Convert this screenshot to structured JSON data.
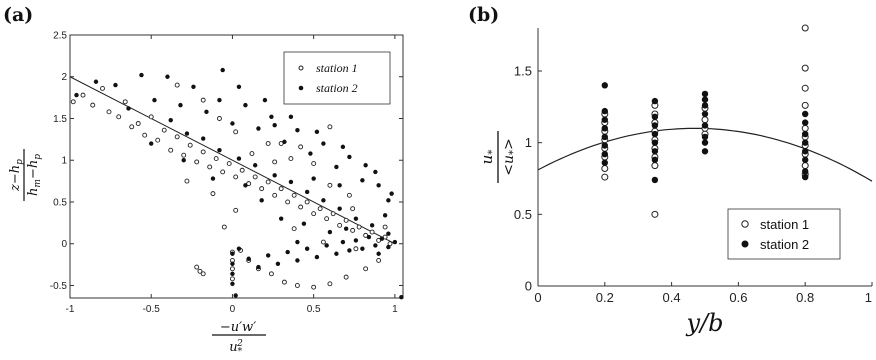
{
  "chart_data": [
    {
      "panel_label": "(a)",
      "type": "scatter",
      "xlabel": "−u′w′ / u*²",
      "ylabel": "z−hp / hm−hp",
      "xlim": [
        -1,
        1.05
      ],
      "ylim": [
        -0.65,
        2.5
      ],
      "xticks": [
        -1,
        -0.5,
        0,
        0.5,
        1
      ],
      "xtick_labels": [
        "-1",
        "-0.5",
        "0",
        "0.5",
        "1"
      ],
      "yticks": [
        -0.5,
        0,
        0.5,
        1,
        1.5,
        2,
        2.5
      ],
      "ytick_labels": [
        "-0.5",
        "0",
        "0.5",
        "1",
        "1.5",
        "2",
        "2.5"
      ],
      "grid": false,
      "legend_position": "top-right",
      "fit_line": {
        "x": [
          -1,
          1
        ],
        "y": [
          2,
          0
        ]
      },
      "series": [
        {
          "name": "station 1",
          "marker": "open-circle",
          "points": [
            [
              -0.98,
              1.7
            ],
            [
              -0.92,
              1.78
            ],
            [
              -0.86,
              1.66
            ],
            [
              -0.8,
              1.86
            ],
            [
              -0.76,
              1.58
            ],
            [
              -0.7,
              1.52
            ],
            [
              -0.66,
              1.7
            ],
            [
              -0.62,
              1.4
            ],
            [
              -0.58,
              1.44
            ],
            [
              -0.54,
              1.3
            ],
            [
              -0.5,
              1.52
            ],
            [
              -0.46,
              1.24
            ],
            [
              -0.42,
              1.36
            ],
            [
              -0.38,
              1.12
            ],
            [
              -0.34,
              1.28
            ],
            [
              -0.3,
              1.06
            ],
            [
              -0.26,
              1.18
            ],
            [
              -0.22,
              0.98
            ],
            [
              -0.18,
              1.1
            ],
            [
              -0.14,
              0.92
            ],
            [
              -0.1,
              1.02
            ],
            [
              -0.06,
              0.86
            ],
            [
              -0.02,
              0.96
            ],
            [
              0.02,
              0.8
            ],
            [
              0.06,
              0.88
            ],
            [
              0.1,
              0.72
            ],
            [
              0.14,
              0.8
            ],
            [
              0.18,
              0.66
            ],
            [
              0.22,
              0.74
            ],
            [
              0.26,
              0.58
            ],
            [
              0.3,
              0.66
            ],
            [
              0.34,
              0.5
            ],
            [
              0.38,
              0.58
            ],
            [
              0.42,
              0.44
            ],
            [
              0.46,
              0.5
            ],
            [
              0.5,
              0.36
            ],
            [
              0.54,
              0.42
            ],
            [
              0.58,
              0.3
            ],
            [
              0.62,
              0.36
            ],
            [
              0.66,
              0.22
            ],
            [
              0.7,
              0.28
            ],
            [
              0.74,
              0.16
            ],
            [
              0.78,
              0.2
            ],
            [
              0.82,
              0.1
            ],
            [
              0.86,
              0.14
            ],
            [
              0.9,
              0.04
            ],
            [
              0.94,
              0.08
            ],
            [
              0.97,
              0.0
            ],
            [
              0.72,
              0.58
            ],
            [
              0.6,
              0.7
            ],
            [
              0.5,
              0.96
            ],
            [
              0.36,
              1.02
            ],
            [
              0.22,
              1.2
            ],
            [
              0.02,
              1.34
            ],
            [
              -0.08,
              1.5
            ],
            [
              -0.18,
              1.72
            ],
            [
              -0.34,
              1.9
            ],
            [
              0.05,
              -0.08
            ],
            [
              0.1,
              -0.2
            ],
            [
              0.16,
              -0.3
            ],
            [
              0.24,
              -0.36
            ],
            [
              0.32,
              -0.46
            ],
            [
              0.4,
              -0.5
            ],
            [
              0.5,
              -0.52
            ],
            [
              0.6,
              -0.48
            ],
            [
              0.7,
              -0.4
            ],
            [
              0.82,
              -0.3
            ],
            [
              0.9,
              -0.2
            ],
            [
              -0.22,
              -0.28
            ],
            [
              -0.2,
              -0.33
            ],
            [
              -0.18,
              -0.36
            ],
            [
              0.0,
              -0.1
            ],
            [
              0.0,
              -0.2
            ],
            [
              0.0,
              -0.3
            ],
            [
              0.0,
              -0.42
            ],
            [
              0.6,
              1.4
            ],
            [
              0.42,
              1.16
            ],
            [
              0.26,
              0.98
            ],
            [
              0.12,
              1.08
            ],
            [
              -0.12,
              0.6
            ],
            [
              -0.28,
              0.75
            ],
            [
              0.02,
              0.4
            ],
            [
              -0.05,
              0.2
            ],
            [
              0.38,
              0.18
            ],
            [
              0.56,
              0.02
            ],
            [
              0.76,
              -0.06
            ],
            [
              0.94,
              0.2
            ],
            [
              0.3,
              1.2
            ],
            [
              0.74,
              0.42
            ]
          ]
        },
        {
          "name": "station 2",
          "marker": "filled-circle",
          "points": [
            [
              -0.96,
              1.78
            ],
            [
              -0.84,
              1.94
            ],
            [
              -0.72,
              1.9
            ],
            [
              -0.64,
              1.62
            ],
            [
              -0.56,
              2.02
            ],
            [
              -0.48,
              1.72
            ],
            [
              -0.4,
              2.0
            ],
            [
              -0.32,
              1.66
            ],
            [
              -0.24,
              1.88
            ],
            [
              -0.16,
              1.58
            ],
            [
              -0.08,
              1.72
            ],
            [
              0.0,
              1.44
            ],
            [
              0.08,
              1.66
            ],
            [
              0.16,
              1.38
            ],
            [
              0.24,
              1.52
            ],
            [
              0.32,
              1.22
            ],
            [
              0.4,
              1.36
            ],
            [
              0.48,
              1.08
            ],
            [
              0.56,
              1.2
            ],
            [
              0.64,
              0.92
            ],
            [
              0.72,
              1.04
            ],
            [
              0.8,
              0.76
            ],
            [
              0.88,
              0.86
            ],
            [
              0.96,
              0.52
            ],
            [
              -0.38,
              1.48
            ],
            [
              -0.28,
              1.32
            ],
            [
              -0.18,
              1.26
            ],
            [
              -0.08,
              1.12
            ],
            [
              0.04,
              1.02
            ],
            [
              0.14,
              0.94
            ],
            [
              0.26,
              0.82
            ],
            [
              0.36,
              0.74
            ],
            [
              0.46,
              0.62
            ],
            [
              0.56,
              0.52
            ],
            [
              0.66,
              0.42
            ],
            [
              0.76,
              0.3
            ],
            [
              0.86,
              0.22
            ],
            [
              0.96,
              0.12
            ],
            [
              1.0,
              0.02
            ],
            [
              0.96,
              -0.04
            ],
            [
              0.92,
              0.06
            ],
            [
              0.88,
              -0.02
            ],
            [
              0.84,
              0.08
            ],
            [
              0.8,
              -0.06
            ],
            [
              0.76,
              0.04
            ],
            [
              0.72,
              -0.08
            ],
            [
              0.68,
              0.02
            ],
            [
              0.64,
              -0.12
            ],
            [
              0.58,
              -0.02
            ],
            [
              0.52,
              -0.16
            ],
            [
              0.46,
              -0.06
            ],
            [
              0.4,
              -0.2
            ],
            [
              0.34,
              -0.1
            ],
            [
              0.28,
              -0.24
            ],
            [
              0.22,
              -0.14
            ],
            [
              0.16,
              -0.28
            ],
            [
              0.1,
              -0.18
            ],
            [
              0.04,
              -0.06
            ],
            [
              0.0,
              -0.12
            ],
            [
              0.0,
              -0.24
            ],
            [
              0.0,
              -0.36
            ],
            [
              0.0,
              -0.48
            ],
            [
              0.02,
              -0.62
            ],
            [
              0.98,
              0.6
            ],
            [
              0.9,
              0.7
            ],
            [
              0.82,
              0.94
            ],
            [
              0.68,
              1.16
            ],
            [
              0.52,
              1.34
            ],
            [
              0.36,
              1.52
            ],
            [
              0.2,
              1.72
            ],
            [
              0.04,
              1.88
            ],
            [
              -0.06,
              2.08
            ],
            [
              -0.5,
              1.2
            ],
            [
              -0.12,
              0.78
            ],
            [
              0.3,
              0.3
            ],
            [
              0.44,
              0.24
            ],
            [
              0.6,
              0.14
            ],
            [
              0.7,
              0.18
            ],
            [
              0.9,
              -0.12
            ],
            [
              1.04,
              -0.64
            ],
            [
              0.5,
              0.78
            ],
            [
              0.18,
              0.52
            ],
            [
              -0.3,
              1.0
            ],
            [
              0.66,
              0.7
            ],
            [
              0.08,
              0.7
            ],
            [
              0.94,
              0.34
            ],
            [
              0.26,
              1.42
            ],
            [
              0.4,
              0.02
            ]
          ]
        }
      ]
    },
    {
      "panel_label": "(b)",
      "type": "scatter",
      "xlabel": "y/b",
      "ylabel": "u* / <u*>",
      "xlim": [
        0,
        1
      ],
      "ylim": [
        0,
        1.8
      ],
      "xticks": [
        0,
        0.2,
        0.4,
        0.6,
        0.8,
        1
      ],
      "xtick_labels": [
        "0",
        "0.2",
        "0.4",
        "0.6",
        "0.8",
        "1"
      ],
      "yticks": [
        0,
        0.5,
        1,
        1.5
      ],
      "ytick_labels": [
        "0",
        "0.5",
        "1",
        "1.5"
      ],
      "grid": false,
      "legend_position": "bottom-right",
      "fit_curve": {
        "form": "parabola",
        "vertex": [
          0.47,
          1.1
        ],
        "endpoints_y": [
          0.81,
          0.81
        ]
      },
      "series": [
        {
          "name": "station 1",
          "marker": "open-circle",
          "points": [
            [
              0.2,
              0.76
            ],
            [
              0.2,
              0.82
            ],
            [
              0.2,
              0.9
            ],
            [
              0.2,
              0.96
            ],
            [
              0.2,
              1.02
            ],
            [
              0.2,
              1.08
            ],
            [
              0.2,
              1.14
            ],
            [
              0.2,
              1.2
            ],
            [
              0.35,
              0.5
            ],
            [
              0.35,
              0.84
            ],
            [
              0.35,
              0.9
            ],
            [
              0.35,
              0.96
            ],
            [
              0.35,
              1.02
            ],
            [
              0.35,
              1.08
            ],
            [
              0.35,
              1.14
            ],
            [
              0.35,
              1.2
            ],
            [
              0.35,
              1.26
            ],
            [
              0.5,
              1.06
            ],
            [
              0.5,
              1.1
            ],
            [
              0.5,
              1.16
            ],
            [
              0.5,
              1.24
            ],
            [
              0.8,
              0.78
            ],
            [
              0.8,
              0.84
            ],
            [
              0.8,
              0.92
            ],
            [
              0.8,
              0.98
            ],
            [
              0.8,
              1.04
            ],
            [
              0.8,
              1.1
            ],
            [
              0.8,
              1.26
            ],
            [
              0.8,
              1.38
            ],
            [
              0.8,
              1.52
            ],
            [
              0.8,
              1.8
            ]
          ]
        },
        {
          "name": "station 2",
          "marker": "filled-circle",
          "points": [
            [
              0.2,
              0.86
            ],
            [
              0.2,
              0.92
            ],
            [
              0.2,
              0.98
            ],
            [
              0.2,
              1.04
            ],
            [
              0.2,
              1.1
            ],
            [
              0.2,
              1.16
            ],
            [
              0.2,
              1.22
            ],
            [
              0.2,
              1.4
            ],
            [
              0.35,
              0.74
            ],
            [
              0.35,
              0.88
            ],
            [
              0.35,
              0.94
            ],
            [
              0.35,
              1.0
            ],
            [
              0.35,
              1.06
            ],
            [
              0.35,
              1.12
            ],
            [
              0.35,
              1.18
            ],
            [
              0.35,
              1.29
            ],
            [
              0.5,
              0.94
            ],
            [
              0.5,
              1.0
            ],
            [
              0.5,
              1.04
            ],
            [
              0.5,
              1.12
            ],
            [
              0.5,
              1.2
            ],
            [
              0.5,
              1.26
            ],
            [
              0.5,
              1.3
            ],
            [
              0.5,
              1.34
            ],
            [
              0.8,
              0.76
            ],
            [
              0.8,
              0.8
            ],
            [
              0.8,
              0.88
            ],
            [
              0.8,
              0.94
            ],
            [
              0.8,
              1.0
            ],
            [
              0.8,
              1.06
            ],
            [
              0.8,
              1.14
            ],
            [
              0.8,
              1.2
            ]
          ]
        }
      ]
    }
  ]
}
